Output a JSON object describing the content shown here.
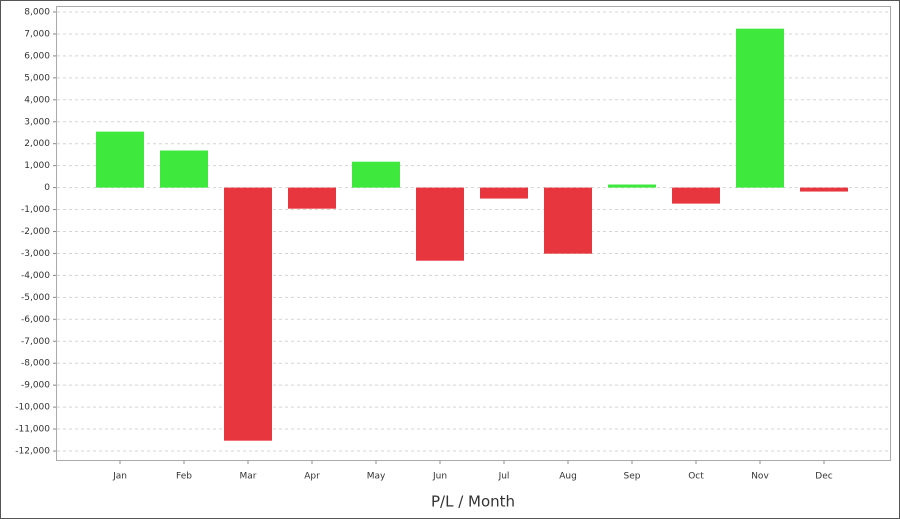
{
  "chart_data": {
    "type": "bar",
    "x_label": "P/L / Month",
    "categories": [
      "Jan",
      "Feb",
      "Mar",
      "Apr",
      "May",
      "Jun",
      "Jul",
      "Aug",
      "Sep",
      "Oct",
      "Nov",
      "Dec"
    ],
    "values": [
      2550,
      1690,
      -11530,
      -960,
      1180,
      -3330,
      -500,
      -3010,
      140,
      -730,
      7240,
      -180
    ],
    "positive_color": "#3ee83c",
    "negative_color": "#e8363e",
    "ylim": [
      -12000,
      8000
    ],
    "yticks": [
      {
        "value": -12000,
        "label": "-12,000"
      },
      {
        "value": -11000,
        "label": "-11,000"
      },
      {
        "value": -10000,
        "label": "-10,000"
      },
      {
        "value": -9000,
        "label": "-9,000"
      },
      {
        "value": -8000,
        "label": "-8,000"
      },
      {
        "value": -7000,
        "label": "-7,000"
      },
      {
        "value": -6000,
        "label": "-6,000"
      },
      {
        "value": -5000,
        "label": "-5,000"
      },
      {
        "value": -4000,
        "label": "-4,000"
      },
      {
        "value": -3000,
        "label": "-3,000"
      },
      {
        "value": -2000,
        "label": "-2,000"
      },
      {
        "value": -1000,
        "label": "-1,000"
      },
      0,
      {
        "value": 1000,
        "label": "1,000"
      },
      {
        "value": 2000,
        "label": "2,000"
      },
      {
        "value": 3000,
        "label": "3,000"
      },
      {
        "value": 4000,
        "label": "4,000"
      },
      {
        "value": 5000,
        "label": "5,000"
      },
      {
        "value": 6000,
        "label": "6,000"
      },
      {
        "value": 7000,
        "label": "7,000"
      },
      {
        "value": 8000,
        "label": "8,000"
      }
    ],
    "grid": true
  }
}
